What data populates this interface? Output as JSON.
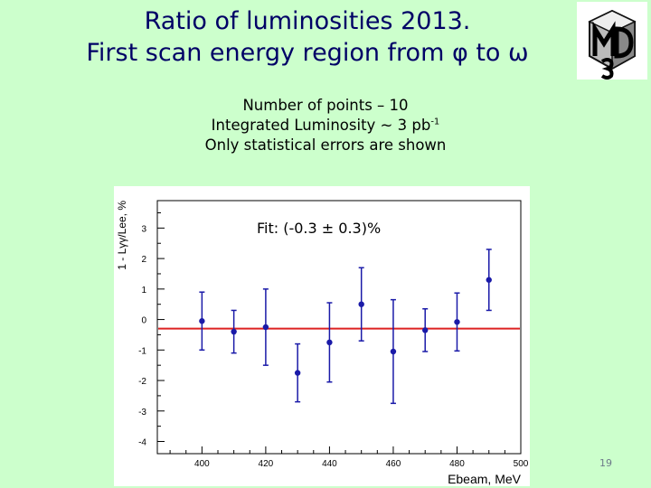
{
  "title": {
    "line1": "Ratio of luminosities 2013.",
    "line2": "First scan energy region from φ to ω"
  },
  "info": {
    "line1": "Number of points – 10",
    "line2_pre": "Integrated Luminosity ~ 3 pb",
    "line2_sup": "-1",
    "line3": "Only statistical errors are shown"
  },
  "page_number": "19",
  "colors": {
    "background": "#ccffcc",
    "title": "#000066",
    "points": "#1a1aa8",
    "fit_line": "#dd2222"
  },
  "logo_icon": "kmd3-detector-logo",
  "chart_data": {
    "type": "scatter",
    "title": "",
    "xlabel": "Ebeam, MeV",
    "ylabel": "1 - Lγγ/Lee, %",
    "annotation": "Fit: (-0.3 ± 0.3)%",
    "xlim": [
      386,
      500
    ],
    "ylim": [
      -4.4,
      3.9
    ],
    "x_ticks": [
      400,
      420,
      440,
      460,
      480,
      500
    ],
    "y_ticks": [
      -4,
      -3,
      -2,
      -1,
      0,
      1,
      2,
      3
    ],
    "grid": false,
    "fit": {
      "value": -0.3,
      "error": 0.3
    },
    "points": [
      {
        "x": 400,
        "y": -0.05,
        "err": 0.95
      },
      {
        "x": 410,
        "y": -0.4,
        "err": 0.7
      },
      {
        "x": 420,
        "y": -0.25,
        "err": 1.25
      },
      {
        "x": 430,
        "y": -1.75,
        "err": 0.95
      },
      {
        "x": 440,
        "y": -0.75,
        "err": 1.3
      },
      {
        "x": 450,
        "y": 0.5,
        "err": 1.2
      },
      {
        "x": 460,
        "y": -1.05,
        "err": 1.7
      },
      {
        "x": 470,
        "y": -0.35,
        "err": 0.7
      },
      {
        "x": 480,
        "y": -0.08,
        "err": 0.95
      },
      {
        "x": 490,
        "y": 1.3,
        "err": 1.0
      }
    ]
  }
}
